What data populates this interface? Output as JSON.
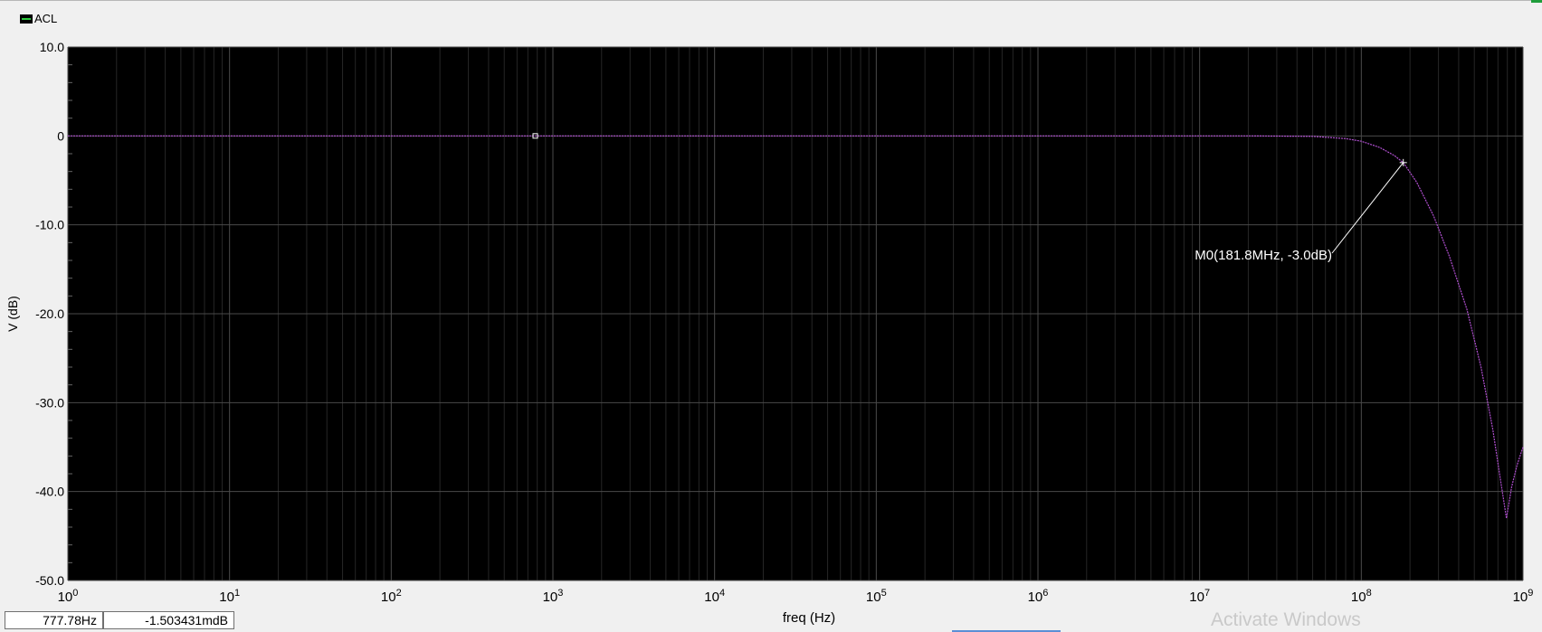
{
  "legend": {
    "label": "ACL",
    "swatch_color": "#2ecc40"
  },
  "readout": {
    "freq": "777.78Hz",
    "value": "-1.503431mdB"
  },
  "watermark": "Activate Windows",
  "chart_data": {
    "type": "line",
    "xlabel": "freq (Hz)",
    "ylabel": "V (dB)",
    "xscale": "log",
    "xlim": [
      1,
      1000000000
    ],
    "ylim": [
      -50,
      10
    ],
    "grid": true,
    "background": "#000000",
    "trace_color": "#b04fd0",
    "x_tick_labels": [
      {
        "base": "10",
        "exp": "0"
      },
      {
        "base": "10",
        "exp": "1"
      },
      {
        "base": "10",
        "exp": "2"
      },
      {
        "base": "10",
        "exp": "3"
      },
      {
        "base": "10",
        "exp": "4"
      },
      {
        "base": "10",
        "exp": "5"
      },
      {
        "base": "10",
        "exp": "6"
      },
      {
        "base": "10",
        "exp": "7"
      },
      {
        "base": "10",
        "exp": "8"
      },
      {
        "base": "10",
        "exp": "9"
      }
    ],
    "y_tick_labels": [
      "10.0",
      "0",
      "-10.0",
      "-20.0",
      "-30.0",
      "-40.0",
      "-50.0"
    ],
    "y_ticks": [
      10,
      0,
      -10,
      -20,
      -30,
      -40,
      -50
    ],
    "series": [
      {
        "name": "ACL",
        "x": [
          1,
          10,
          100,
          1000,
          10000,
          100000,
          1000000,
          10000000,
          20000000,
          50000000,
          80000000,
          100000000,
          130000000,
          160000000,
          181800000,
          220000000,
          280000000,
          350000000,
          450000000,
          550000000,
          650000000,
          730000000,
          790000000,
          850000000,
          920000000,
          1000000000
        ],
        "y": [
          0,
          0,
          0,
          0,
          0,
          0,
          0,
          0,
          0,
          -0.05,
          -0.3,
          -0.6,
          -1.3,
          -2.2,
          -3.0,
          -5.2,
          -9.0,
          -13.5,
          -19.5,
          -26.0,
          -33.0,
          -39.0,
          -43.0,
          -39.5,
          -37.0,
          -35.0
        ]
      }
    ],
    "markers": [
      {
        "label": "M0(181.8MHz, -3.0dB)",
        "x": 181800000,
        "y": -3.0
      }
    ],
    "cursor": {
      "x": 777.78,
      "y": 0
    }
  }
}
